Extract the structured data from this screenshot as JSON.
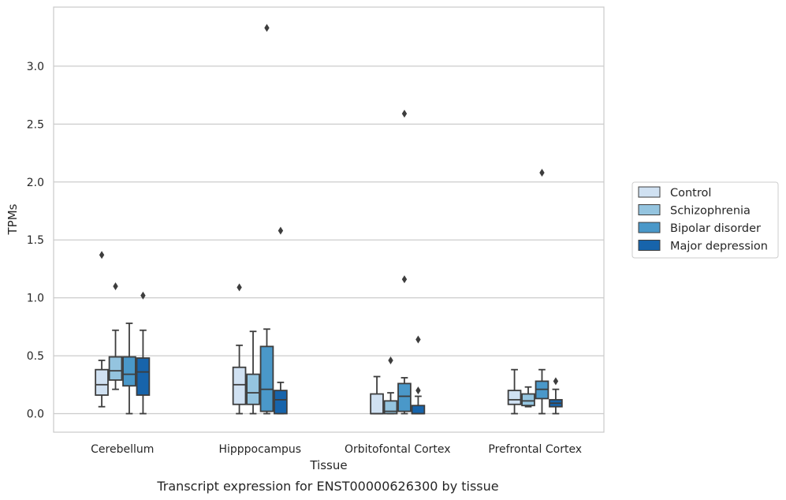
{
  "chart_data": {
    "type": "box",
    "caption": "Transcript expression for ENST00000626300 by tissue",
    "xlabel": "Tissue",
    "ylabel": "TPMs",
    "ylim": [
      -0.16,
      3.51
    ],
    "yticks": [
      0.0,
      0.5,
      1.0,
      1.5,
      2.0,
      2.5,
      3.0
    ],
    "ytick_labels": [
      "0.0",
      "0.5",
      "1.0",
      "1.5",
      "2.0",
      "2.5",
      "3.0"
    ],
    "grid": "horizontal",
    "legend_position": "right",
    "categories": [
      "Cerebellum",
      "Hipppocampus",
      "Orbitofontal Cortex",
      "Prefrontal Cortex"
    ],
    "series": [
      {
        "name": "Control",
        "color": "#d0e1f2",
        "boxes": [
          {
            "whislo": 0.06,
            "q1": 0.16,
            "med": 0.25,
            "q3": 0.38,
            "whishi": 0.46,
            "fliers": [
              1.37
            ]
          },
          {
            "whislo": 0.0,
            "q1": 0.08,
            "med": 0.25,
            "q3": 0.4,
            "whishi": 0.59,
            "fliers": [
              1.09
            ]
          },
          {
            "whislo": 0.0,
            "q1": 0.0,
            "med": 0.0,
            "q3": 0.17,
            "whishi": 0.32,
            "fliers": []
          },
          {
            "whislo": 0.0,
            "q1": 0.08,
            "med": 0.12,
            "q3": 0.2,
            "whishi": 0.38,
            "fliers": []
          }
        ]
      },
      {
        "name": "Schizophrenia",
        "color": "#94c4df",
        "boxes": [
          {
            "whislo": 0.21,
            "q1": 0.29,
            "med": 0.37,
            "q3": 0.49,
            "whishi": 0.72,
            "fliers": [
              1.1
            ]
          },
          {
            "whislo": 0.0,
            "q1": 0.08,
            "med": 0.18,
            "q3": 0.34,
            "whishi": 0.71,
            "fliers": []
          },
          {
            "whislo": 0.0,
            "q1": 0.0,
            "med": 0.02,
            "q3": 0.11,
            "whishi": 0.18,
            "fliers": [
              0.46
            ]
          },
          {
            "whislo": 0.06,
            "q1": 0.07,
            "med": 0.11,
            "q3": 0.17,
            "whishi": 0.23,
            "fliers": []
          }
        ]
      },
      {
        "name": "Bipolar disorder",
        "color": "#4a98c9",
        "boxes": [
          {
            "whislo": 0.0,
            "q1": 0.24,
            "med": 0.34,
            "q3": 0.49,
            "whishi": 0.78,
            "fliers": []
          },
          {
            "whislo": 0.0,
            "q1": 0.02,
            "med": 0.21,
            "q3": 0.58,
            "whishi": 0.73,
            "fliers": [
              3.33
            ]
          },
          {
            "whislo": 0.0,
            "q1": 0.02,
            "med": 0.15,
            "q3": 0.26,
            "whishi": 0.31,
            "fliers": [
              1.16,
              2.59
            ]
          },
          {
            "whislo": 0.0,
            "q1": 0.13,
            "med": 0.21,
            "q3": 0.28,
            "whishi": 0.38,
            "fliers": [
              2.08
            ]
          }
        ]
      },
      {
        "name": "Major depression",
        "color": "#1764ab",
        "boxes": [
          {
            "whislo": 0.0,
            "q1": 0.16,
            "med": 0.36,
            "q3": 0.48,
            "whishi": 0.72,
            "fliers": [
              1.02
            ]
          },
          {
            "whislo": 0.0,
            "q1": 0.0,
            "med": 0.12,
            "q3": 0.2,
            "whishi": 0.27,
            "fliers": [
              1.58
            ]
          },
          {
            "whislo": 0.0,
            "q1": 0.0,
            "med": 0.0,
            "q3": 0.07,
            "whishi": 0.15,
            "fliers": [
              0.2,
              0.64
            ]
          },
          {
            "whislo": 0.0,
            "q1": 0.06,
            "med": 0.09,
            "q3": 0.12,
            "whishi": 0.21,
            "fliers": [
              0.28
            ]
          }
        ]
      }
    ]
  }
}
